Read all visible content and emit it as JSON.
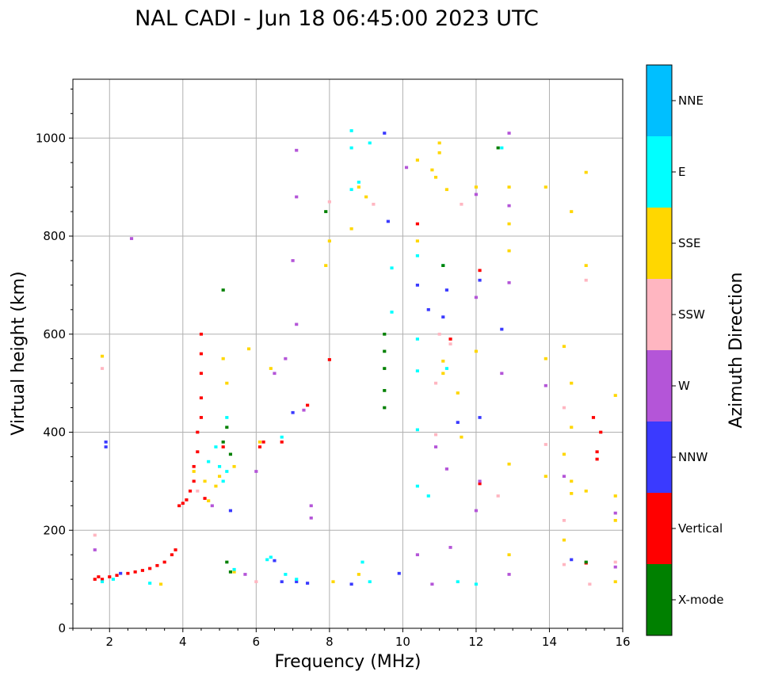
{
  "chart_data": {
    "type": "scatter",
    "title": "NAL CADI - Jun 18 06:45:00 2023 UTC",
    "xlabel": "Frequency (MHz)",
    "ylabel": "Virtual height (km)",
    "xlim": [
      1,
      16
    ],
    "ylim": [
      0,
      1120
    ],
    "xticks": [
      2,
      4,
      6,
      8,
      10,
      12,
      14,
      16
    ],
    "yticks": [
      0,
      200,
      400,
      600,
      800,
      1000
    ],
    "grid": true,
    "colorbar": {
      "label": "Azimuth Direction",
      "categories": [
        {
          "name": "X-mode",
          "color": "#008000"
        },
        {
          "name": "Vertical",
          "color": "#ff0000"
        },
        {
          "name": "NNW",
          "color": "#3a3aff"
        },
        {
          "name": "W",
          "color": "#b455d8"
        },
        {
          "name": "SSW",
          "color": "#ffb6c1"
        },
        {
          "name": "SSE",
          "color": "#ffd700"
        },
        {
          "name": "E",
          "color": "#00ffff"
        },
        {
          "name": "NNE",
          "color": "#00bfff"
        }
      ]
    },
    "series": [
      {
        "name": "Vertical",
        "points": [
          [
            1.6,
            100
          ],
          [
            1.7,
            105
          ],
          [
            1.8,
            100
          ],
          [
            2.0,
            105
          ],
          [
            2.2,
            108
          ],
          [
            2.5,
            112
          ],
          [
            2.7,
            115
          ],
          [
            2.9,
            118
          ],
          [
            3.1,
            122
          ],
          [
            3.3,
            128
          ],
          [
            3.5,
            135
          ],
          [
            3.7,
            150
          ],
          [
            3.8,
            160
          ],
          [
            3.9,
            250
          ],
          [
            4.0,
            255
          ],
          [
            4.1,
            262
          ],
          [
            4.2,
            280
          ],
          [
            4.3,
            300
          ],
          [
            4.3,
            330
          ],
          [
            4.4,
            360
          ],
          [
            4.4,
            400
          ],
          [
            4.5,
            430
          ],
          [
            4.5,
            470
          ],
          [
            4.5,
            520
          ],
          [
            4.5,
            560
          ],
          [
            4.5,
            600
          ],
          [
            4.6,
            265
          ],
          [
            5.1,
            370
          ],
          [
            6.1,
            370
          ],
          [
            6.2,
            380
          ],
          [
            6.7,
            380
          ],
          [
            7.4,
            455
          ],
          [
            8.0,
            548
          ],
          [
            10.4,
            825
          ],
          [
            11.3,
            590
          ],
          [
            12.1,
            295
          ],
          [
            12.1,
            730
          ],
          [
            15.2,
            430
          ],
          [
            15.4,
            400
          ],
          [
            15.3,
            360
          ],
          [
            15.3,
            345
          ],
          [
            15.0,
            133
          ]
        ]
      },
      {
        "name": "NNW",
        "points": [
          [
            1.9,
            380
          ],
          [
            1.9,
            370
          ],
          [
            2.3,
            112
          ],
          [
            5.3,
            240
          ],
          [
            6.5,
            138
          ],
          [
            6.7,
            95
          ],
          [
            7.0,
            440
          ],
          [
            7.1,
            95
          ],
          [
            7.4,
            92
          ],
          [
            8.6,
            90
          ],
          [
            9.5,
            1010
          ],
          [
            9.6,
            830
          ],
          [
            9.9,
            112
          ],
          [
            10.4,
            700
          ],
          [
            10.7,
            650
          ],
          [
            11.1,
            635
          ],
          [
            11.2,
            690
          ],
          [
            11.5,
            420
          ],
          [
            12.1,
            710
          ],
          [
            12.1,
            430
          ],
          [
            12.7,
            610
          ],
          [
            14.6,
            140
          ]
        ]
      },
      {
        "name": "W",
        "points": [
          [
            1.6,
            160
          ],
          [
            2.6,
            795
          ],
          [
            4.8,
            250
          ],
          [
            5.7,
            110
          ],
          [
            6.0,
            320
          ],
          [
            6.5,
            520
          ],
          [
            6.8,
            550
          ],
          [
            7.0,
            750
          ],
          [
            7.1,
            975
          ],
          [
            7.1,
            880
          ],
          [
            7.1,
            620
          ],
          [
            7.3,
            445
          ],
          [
            7.5,
            250
          ],
          [
            7.5,
            225
          ],
          [
            10.1,
            940
          ],
          [
            10.4,
            150
          ],
          [
            10.8,
            90
          ],
          [
            10.9,
            370
          ],
          [
            11.2,
            325
          ],
          [
            11.3,
            165
          ],
          [
            12.0,
            885
          ],
          [
            12.0,
            675
          ],
          [
            12.0,
            240
          ],
          [
            12.1,
            300
          ],
          [
            12.7,
            520
          ],
          [
            12.9,
            1010
          ],
          [
            12.9,
            862
          ],
          [
            12.9,
            705
          ],
          [
            12.9,
            110
          ],
          [
            13.9,
            495
          ],
          [
            14.4,
            310
          ],
          [
            15.8,
            235
          ],
          [
            15.8,
            125
          ]
        ]
      },
      {
        "name": "SSW",
        "points": [
          [
            1.6,
            190
          ],
          [
            1.8,
            530
          ],
          [
            4.4,
            280
          ],
          [
            6.0,
            95
          ],
          [
            8.0,
            870
          ],
          [
            9.2,
            865
          ],
          [
            10.9,
            500
          ],
          [
            10.9,
            395
          ],
          [
            11.0,
            600
          ],
          [
            11.3,
            580
          ],
          [
            11.6,
            865
          ],
          [
            12.6,
            270
          ],
          [
            13.9,
            375
          ],
          [
            14.4,
            450
          ],
          [
            14.4,
            220
          ],
          [
            14.4,
            130
          ],
          [
            15.0,
            710
          ],
          [
            15.1,
            90
          ],
          [
            15.8,
            135
          ]
        ]
      },
      {
        "name": "SSE",
        "points": [
          [
            1.8,
            555
          ],
          [
            3.4,
            90
          ],
          [
            4.3,
            320
          ],
          [
            4.6,
            300
          ],
          [
            4.7,
            260
          ],
          [
            4.9,
            290
          ],
          [
            5.0,
            310
          ],
          [
            5.1,
            550
          ],
          [
            5.2,
            500
          ],
          [
            5.4,
            330
          ],
          [
            5.4,
            115
          ],
          [
            5.8,
            570
          ],
          [
            6.1,
            380
          ],
          [
            6.4,
            530
          ],
          [
            7.9,
            740
          ],
          [
            8.0,
            790
          ],
          [
            8.1,
            95
          ],
          [
            8.6,
            815
          ],
          [
            8.8,
            900
          ],
          [
            8.8,
            110
          ],
          [
            9.0,
            880
          ],
          [
            10.4,
            790
          ],
          [
            10.4,
            955
          ],
          [
            10.8,
            935
          ],
          [
            10.9,
            920
          ],
          [
            11.0,
            990
          ],
          [
            11.0,
            970
          ],
          [
            11.1,
            545
          ],
          [
            11.1,
            520
          ],
          [
            11.2,
            895
          ],
          [
            11.5,
            480
          ],
          [
            11.6,
            390
          ],
          [
            12.0,
            900
          ],
          [
            12.0,
            565
          ],
          [
            12.9,
            900
          ],
          [
            12.9,
            825
          ],
          [
            12.9,
            770
          ],
          [
            12.9,
            335
          ],
          [
            12.9,
            150
          ],
          [
            13.9,
            900
          ],
          [
            13.9,
            550
          ],
          [
            13.9,
            310
          ],
          [
            14.4,
            575
          ],
          [
            14.4,
            355
          ],
          [
            14.4,
            180
          ],
          [
            14.6,
            850
          ],
          [
            14.6,
            500
          ],
          [
            14.6,
            410
          ],
          [
            14.6,
            300
          ],
          [
            14.6,
            275
          ],
          [
            15.0,
            930
          ],
          [
            15.0,
            740
          ],
          [
            15.0,
            280
          ],
          [
            15.8,
            475
          ],
          [
            15.8,
            270
          ],
          [
            15.8,
            220
          ],
          [
            15.8,
            95
          ]
        ]
      },
      {
        "name": "E",
        "points": [
          [
            1.8,
            95
          ],
          [
            2.1,
            100
          ],
          [
            3.1,
            92
          ],
          [
            4.7,
            340
          ],
          [
            4.9,
            370
          ],
          [
            5.0,
            330
          ],
          [
            5.1,
            300
          ],
          [
            5.2,
            430
          ],
          [
            5.2,
            320
          ],
          [
            5.4,
            120
          ],
          [
            6.3,
            140
          ],
          [
            6.4,
            145
          ],
          [
            6.7,
            390
          ],
          [
            6.8,
            110
          ],
          [
            7.1,
            100
          ],
          [
            8.6,
            1015
          ],
          [
            8.6,
            980
          ],
          [
            8.6,
            895
          ],
          [
            8.8,
            910
          ],
          [
            8.9,
            135
          ],
          [
            9.1,
            990
          ],
          [
            9.1,
            95
          ],
          [
            9.7,
            735
          ],
          [
            9.7,
            645
          ],
          [
            10.4,
            760
          ],
          [
            10.4,
            590
          ],
          [
            10.4,
            525
          ],
          [
            10.4,
            405
          ],
          [
            10.4,
            290
          ],
          [
            10.7,
            270
          ],
          [
            11.1,
            740
          ],
          [
            11.2,
            530
          ],
          [
            11.5,
            95
          ],
          [
            12.0,
            90
          ],
          [
            12.7,
            980
          ]
        ]
      },
      {
        "name": "X-mode",
        "points": [
          [
            5.1,
            690
          ],
          [
            5.1,
            380
          ],
          [
            5.2,
            410
          ],
          [
            5.3,
            355
          ],
          [
            5.2,
            135
          ],
          [
            5.3,
            115
          ],
          [
            7.9,
            850
          ],
          [
            9.5,
            600
          ],
          [
            9.5,
            565
          ],
          [
            9.5,
            530
          ],
          [
            9.5,
            485
          ],
          [
            9.5,
            450
          ],
          [
            11.1,
            740
          ],
          [
            12.6,
            980
          ],
          [
            15.0,
            135
          ]
        ]
      }
    ]
  }
}
